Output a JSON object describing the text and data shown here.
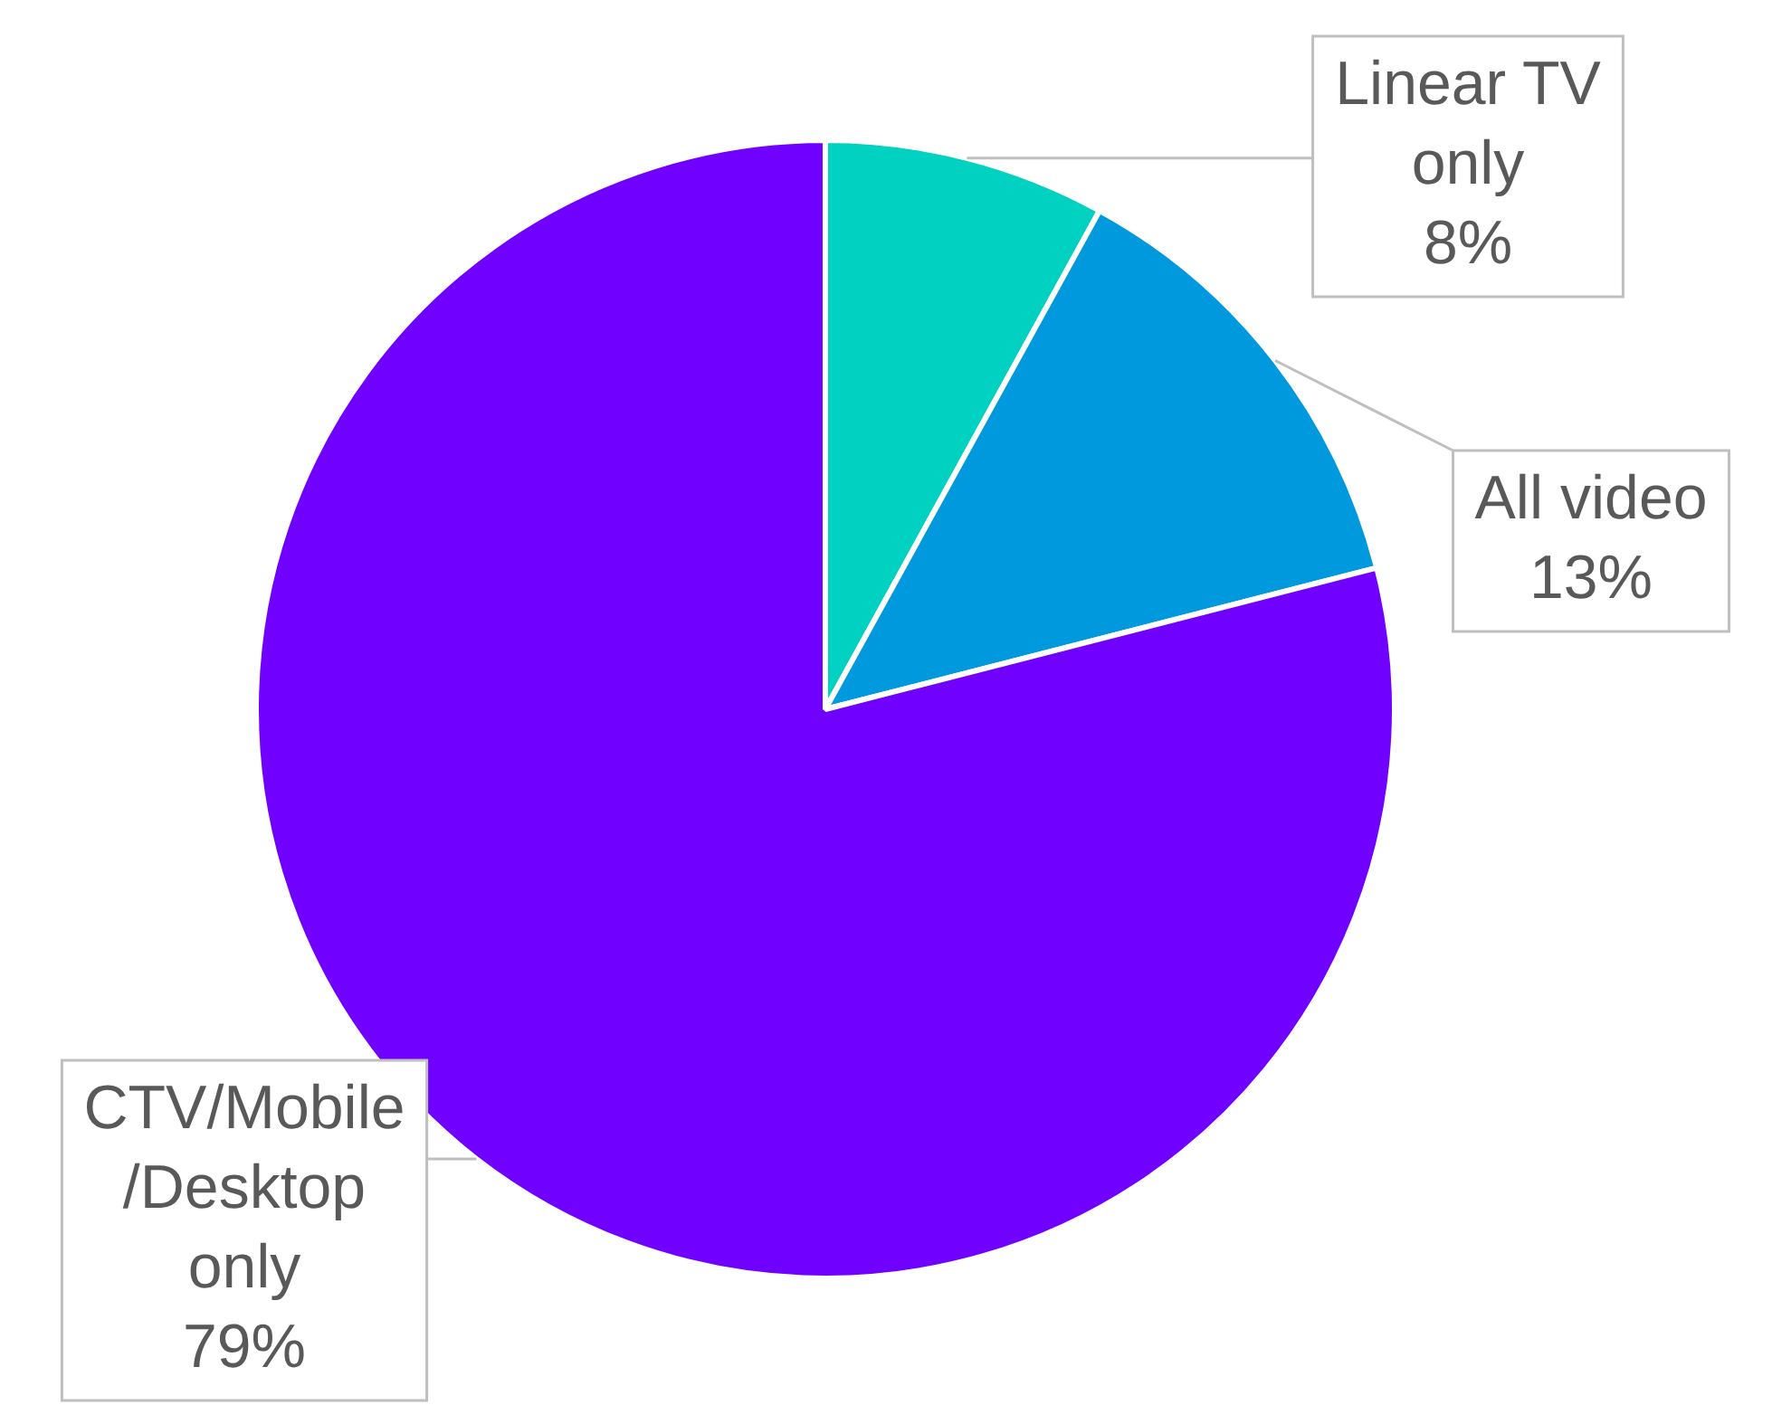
{
  "chart_data": {
    "type": "pie",
    "categories": [
      "Linear TV only",
      "All video",
      "CTV/Mobile/Desktop only"
    ],
    "values": [
      8,
      13,
      79
    ],
    "colors": [
      "#00d1c1",
      "#0099dd",
      "#7000ff"
    ],
    "value_labels": [
      "8%",
      "13%",
      "79%"
    ],
    "legend": false
  }
}
